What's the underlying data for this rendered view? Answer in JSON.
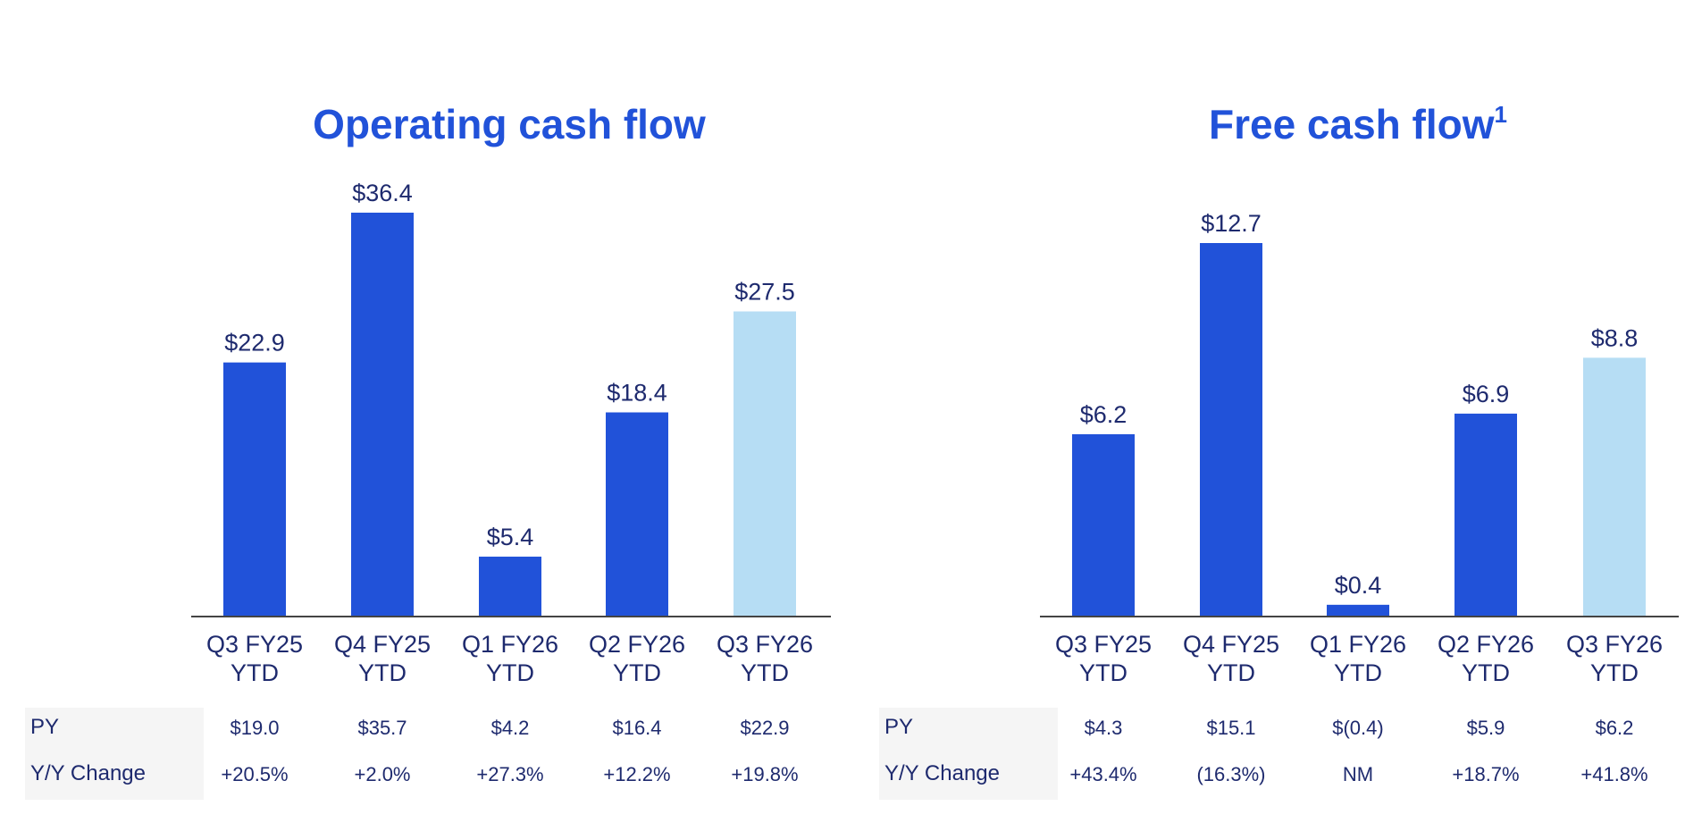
{
  "colors": {
    "title": "#2152d9",
    "bar": "#2152d9",
    "bar_highlight": "#b6ddf4",
    "text": "#1e2a6e",
    "axis": "#444444",
    "label_bg": "#f5f5f5"
  },
  "chart_data": [
    {
      "type": "bar",
      "title": "Operating cash flow",
      "categories": [
        "Q3 FY25 YTD",
        "Q4 FY25 YTD",
        "Q1 FY26 YTD",
        "Q2 FY26 YTD",
        "Q3 FY26 YTD"
      ],
      "category_lines": [
        [
          "Q3 FY25",
          "YTD"
        ],
        [
          "Q4 FY25",
          "YTD"
        ],
        [
          "Q1 FY26",
          "YTD"
        ],
        [
          "Q2 FY26",
          "YTD"
        ],
        [
          "Q3 FY26",
          "YTD"
        ]
      ],
      "values": [
        22.9,
        36.4,
        5.4,
        18.4,
        27.5
      ],
      "value_labels": [
        "$22.9",
        "$36.4",
        "$5.4",
        "$18.4",
        "$27.5"
      ],
      "highlight_index": 4,
      "ylim": [
        0,
        36.4
      ],
      "grid": false,
      "table": {
        "rows": [
          {
            "label": "PY",
            "values": [
              "$19.0",
              "$35.7",
              "$4.2",
              "$16.4",
              "$22.9"
            ]
          },
          {
            "label": "Y/Y Change",
            "values": [
              "+20.5%",
              "+2.0%",
              "+27.3%",
              "+12.2%",
              "+19.8%"
            ]
          }
        ]
      }
    },
    {
      "type": "bar",
      "title": "Free cash flow",
      "title_footnote": "1",
      "categories": [
        "Q3 FY25 YTD",
        "Q4 FY25 YTD",
        "Q1 FY26 YTD",
        "Q2 FY26 YTD",
        "Q3 FY26 YTD"
      ],
      "category_lines": [
        [
          "Q3 FY25",
          "YTD"
        ],
        [
          "Q4 FY25",
          "YTD"
        ],
        [
          "Q1 FY26",
          "YTD"
        ],
        [
          "Q2 FY26",
          "YTD"
        ],
        [
          "Q3 FY26",
          "YTD"
        ]
      ],
      "values": [
        6.2,
        12.7,
        0.4,
        6.9,
        8.8
      ],
      "value_labels": [
        "$6.2",
        "$12.7",
        "$0.4",
        "$6.9",
        "$8.8"
      ],
      "highlight_index": 4,
      "ylim": [
        0,
        12.7
      ],
      "grid": false,
      "table": {
        "rows": [
          {
            "label": "PY",
            "values": [
              "$4.3",
              "$15.1",
              "$(0.4)",
              "$5.9",
              "$6.2"
            ]
          },
          {
            "label": "Y/Y Change",
            "values": [
              "+43.4%",
              "(16.3%)",
              "NM",
              "+18.7%",
              "+41.8%"
            ]
          }
        ]
      }
    }
  ]
}
